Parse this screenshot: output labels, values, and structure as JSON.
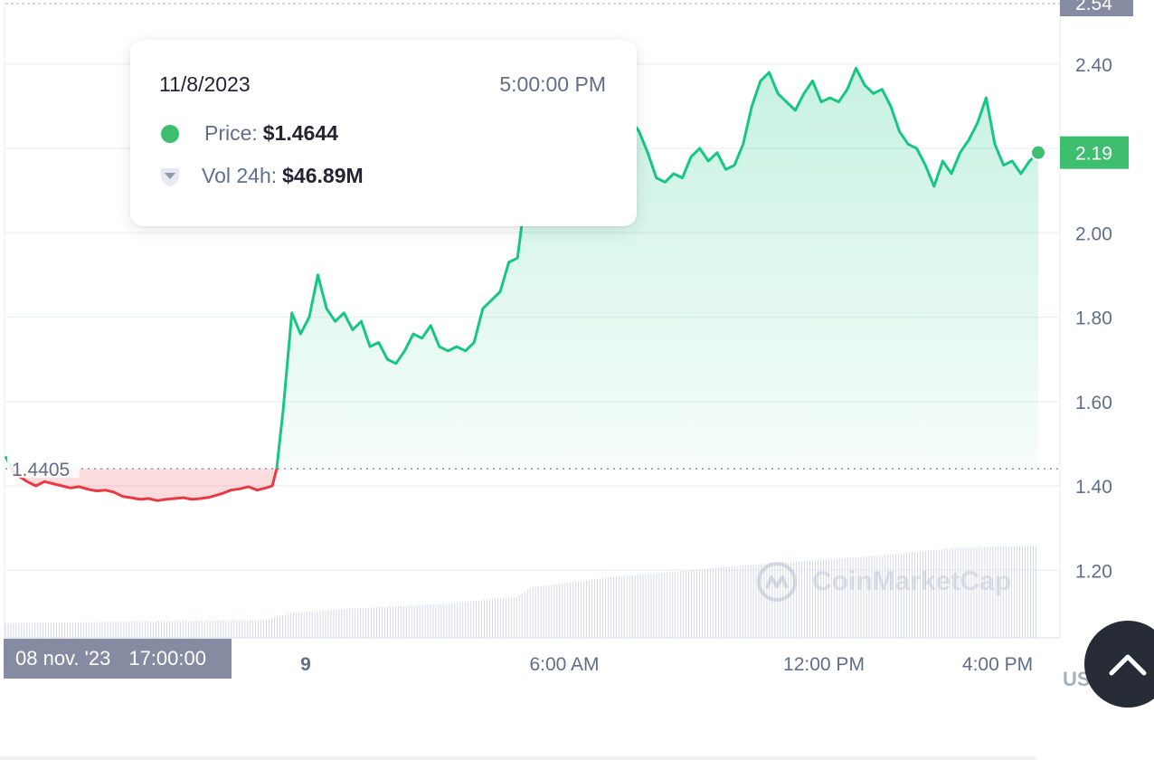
{
  "chart_data": {
    "type": "line",
    "x_ticks": [
      "9",
      "6:00 AM",
      "12:00 PM",
      "4:00 PM"
    ],
    "y_ticks": [
      "1.20",
      "1.40",
      "1.60",
      "1.80",
      "2.00",
      "2.40"
    ],
    "ylim": [
      1.1,
      2.54
    ],
    "y_top_label": "2.54",
    "current_price_label": "2.19",
    "reference_price_label": "1.4405",
    "reference_price": 1.4405,
    "unit": "USD",
    "grid": true,
    "series": [
      {
        "color_up": "#16c784",
        "color_down": "#ea3943",
        "points": [
          [
            0,
            1.47
          ],
          [
            2,
            1.43
          ],
          [
            5,
            1.41
          ],
          [
            7,
            1.4
          ],
          [
            9,
            1.41
          ],
          [
            11,
            1.405
          ],
          [
            13,
            1.4
          ],
          [
            15,
            1.395
          ],
          [
            17,
            1.398
          ],
          [
            19,
            1.392
          ],
          [
            21,
            1.388
          ],
          [
            23,
            1.39
          ],
          [
            25,
            1.385
          ],
          [
            27,
            1.375
          ],
          [
            29,
            1.372
          ],
          [
            31,
            1.368
          ],
          [
            33,
            1.37
          ],
          [
            35,
            1.365
          ],
          [
            37,
            1.368
          ],
          [
            39,
            1.37
          ],
          [
            41,
            1.372
          ],
          [
            43,
            1.368
          ],
          [
            45,
            1.37
          ],
          [
            47,
            1.373
          ],
          [
            48,
            1.376
          ],
          [
            50,
            1.382
          ],
          [
            52,
            1.39
          ],
          [
            54,
            1.393
          ],
          [
            56,
            1.398
          ],
          [
            58,
            1.39
          ],
          [
            60,
            1.395
          ],
          [
            61.5,
            1.4
          ],
          [
            62.5,
            1.44
          ],
          [
            64,
            1.58
          ],
          [
            66,
            1.81
          ],
          [
            68,
            1.76
          ],
          [
            70,
            1.8
          ],
          [
            72,
            1.9
          ],
          [
            74,
            1.82
          ],
          [
            76,
            1.79
          ],
          [
            78,
            1.81
          ],
          [
            80,
            1.77
          ],
          [
            82,
            1.79
          ],
          [
            84,
            1.73
          ],
          [
            86,
            1.74
          ],
          [
            88,
            1.7
          ],
          [
            90,
            1.69
          ],
          [
            92,
            1.72
          ],
          [
            94,
            1.76
          ],
          [
            96,
            1.75
          ],
          [
            98,
            1.78
          ],
          [
            100,
            1.73
          ],
          [
            102,
            1.72
          ],
          [
            104,
            1.73
          ],
          [
            106,
            1.72
          ],
          [
            108,
            1.74
          ],
          [
            110,
            1.82
          ],
          [
            112,
            1.84
          ],
          [
            114,
            1.86
          ],
          [
            116,
            1.93
          ],
          [
            118,
            1.94
          ],
          [
            119,
            2.02
          ],
          [
            120,
            2.12
          ],
          [
            121,
            2.23
          ],
          [
            122,
            2.17
          ],
          [
            124,
            2.14
          ],
          [
            126,
            2.09
          ],
          [
            128,
            2.18
          ],
          [
            130,
            2.23
          ],
          [
            132,
            2.3
          ],
          [
            134,
            2.35
          ],
          [
            136,
            2.29
          ],
          [
            138,
            2.21
          ],
          [
            140,
            2.28
          ],
          [
            142,
            2.24
          ],
          [
            144,
            2.27
          ],
          [
            146,
            2.24
          ],
          [
            148,
            2.19
          ],
          [
            150,
            2.13
          ],
          [
            152,
            2.12
          ],
          [
            154,
            2.14
          ],
          [
            156,
            2.13
          ],
          [
            158,
            2.18
          ],
          [
            160,
            2.2
          ],
          [
            162,
            2.17
          ],
          [
            164,
            2.19
          ],
          [
            166,
            2.15
          ],
          [
            168,
            2.16
          ],
          [
            170,
            2.21
          ],
          [
            172,
            2.3
          ],
          [
            174,
            2.36
          ],
          [
            176,
            2.38
          ],
          [
            178,
            2.33
          ],
          [
            180,
            2.31
          ],
          [
            182,
            2.29
          ],
          [
            184,
            2.33
          ],
          [
            186,
            2.36
          ],
          [
            188,
            2.31
          ],
          [
            190,
            2.32
          ],
          [
            192,
            2.31
          ],
          [
            194,
            2.34
          ],
          [
            196,
            2.39
          ],
          [
            198,
            2.35
          ],
          [
            200,
            2.33
          ],
          [
            202,
            2.34
          ],
          [
            204,
            2.3
          ],
          [
            206,
            2.24
          ],
          [
            208,
            2.21
          ],
          [
            210,
            2.2
          ],
          [
            212,
            2.16
          ],
          [
            214,
            2.11
          ],
          [
            216,
            2.17
          ],
          [
            218,
            2.14
          ],
          [
            220,
            2.19
          ],
          [
            222,
            2.22
          ],
          [
            224,
            2.26
          ],
          [
            226,
            2.32
          ],
          [
            228,
            2.21
          ],
          [
            230,
            2.16
          ],
          [
            232,
            2.17
          ],
          [
            234,
            2.14
          ],
          [
            236,
            2.17
          ],
          [
            238,
            2.19
          ]
        ]
      }
    ],
    "volume": {
      "color": "#cfd6e4",
      "levels": [
        [
          0,
          0.14
        ],
        [
          20,
          0.15
        ],
        [
          40,
          0.16
        ],
        [
          60,
          0.17
        ],
        [
          66,
          0.24
        ],
        [
          80,
          0.28
        ],
        [
          100,
          0.32
        ],
        [
          118,
          0.39
        ],
        [
          121,
          0.48
        ],
        [
          140,
          0.58
        ],
        [
          170,
          0.69
        ],
        [
          200,
          0.78
        ],
        [
          220,
          0.86
        ],
        [
          238,
          0.88
        ]
      ]
    }
  },
  "tooltip": {
    "date": "11/8/2023",
    "time": "5:00:00 PM",
    "price_label": "Price:",
    "price_value": "$1.4644",
    "vol_label": "Vol 24h:",
    "vol_value": "$46.89M",
    "price_dot_color": "#3dbf6f",
    "vol_icon": "volume-shield-icon"
  },
  "date_badge": {
    "date": "08 nov. '23",
    "time": "17:00:00"
  },
  "currency": "USD",
  "watermark": "CoinMarketCap",
  "scroll_top_icon": "chevron-up-icon"
}
